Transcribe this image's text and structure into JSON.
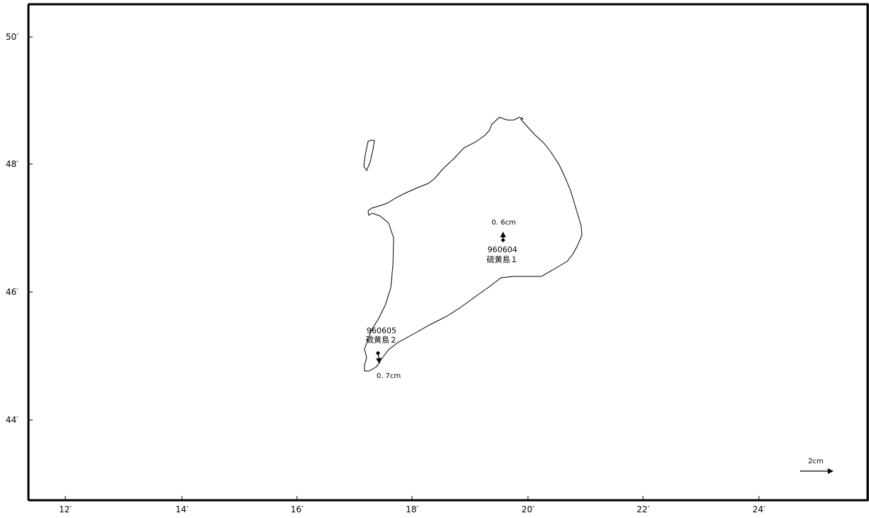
{
  "map": {
    "lat_labels": [
      "50′",
      "48′",
      "46′",
      "44′"
    ],
    "lon_labels": [
      "12′",
      "14′",
      "16′",
      "18′",
      "20′",
      "22′",
      "24′"
    ],
    "stations": [
      {
        "id": "960604",
        "name": "硫黄島１",
        "displacement": "0. 6cm",
        "direction": "north"
      },
      {
        "id": "960605",
        "name": "硫黄島２",
        "displacement": "0. 7cm",
        "direction": "south"
      }
    ],
    "scale_label": "2cm",
    "line_color": "#000000",
    "background_color": "#ffffff"
  }
}
